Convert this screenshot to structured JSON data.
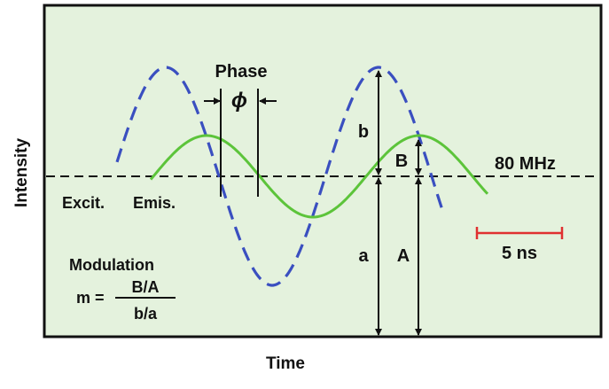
{
  "axes": {
    "y_label": "Intensity",
    "x_label": "Time"
  },
  "annotations": {
    "phase_label": "Phase",
    "phase_symbol": "ϕ",
    "frequency": "80 MHz",
    "excitation": "Excit.",
    "emission": "Emis.",
    "scale_bar": "5 ns",
    "modulation_title": "Modulation",
    "m_prefix": "m =",
    "m_numerator": "B/A",
    "m_denominator": "b/a",
    "b_small": "b",
    "a_small": "a",
    "B_big": "B",
    "A_big": "A"
  },
  "colors": {
    "background": "#e4f2dd",
    "excitation_wave": "#3a4fc0",
    "emission_wave": "#5cc43a",
    "scale_bar": "#e03030",
    "frame": "#111111"
  }
}
